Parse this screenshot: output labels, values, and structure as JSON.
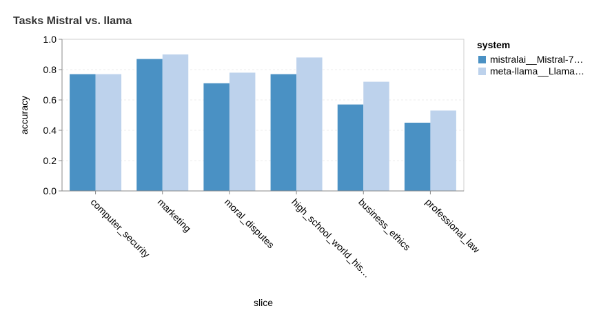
{
  "chart_data": {
    "type": "bar",
    "title": "Tasks Mistral vs. llama",
    "xlabel": "slice",
    "ylabel": "accuracy",
    "ylim": [
      0,
      1
    ],
    "yticks": [
      "0.0",
      "0.2",
      "0.4",
      "0.6",
      "0.8",
      "1.0"
    ],
    "categories": [
      "computer_security",
      "marketing",
      "moral_disputes",
      "high_school_world_his…",
      "business_ethics",
      "professional_law"
    ],
    "legend_title": "system",
    "legend_position": "right",
    "grid": true,
    "series": [
      {
        "name": "mistralai__Mistral-7…",
        "color": "#4a91c4",
        "values": [
          0.77,
          0.87,
          0.71,
          0.77,
          0.57,
          0.45
        ]
      },
      {
        "name": "meta-llama__Llama…",
        "color": "#bdd2ec",
        "values": [
          0.77,
          0.9,
          0.78,
          0.88,
          0.72,
          0.53
        ]
      }
    ]
  }
}
